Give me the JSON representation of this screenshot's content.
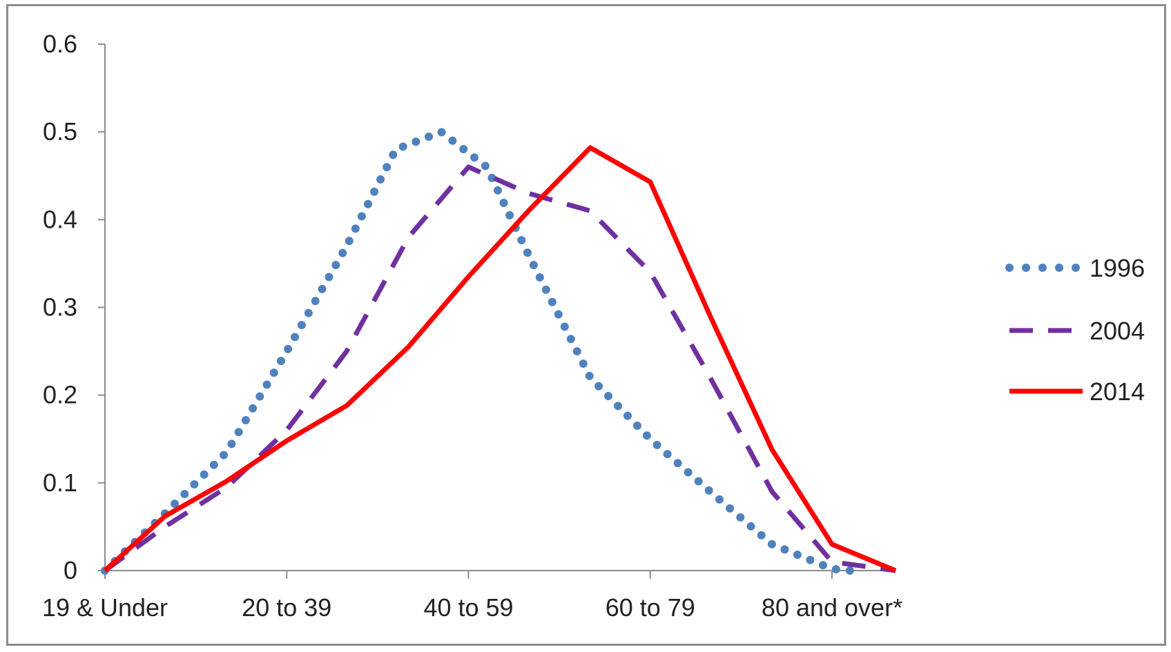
{
  "chart_data": {
    "type": "line",
    "categories": [
      "19 & Under",
      "20 to 39",
      "40 to 59",
      "60 to 79",
      "80 and over*"
    ],
    "x_positions": [
      0,
      1,
      2,
      3,
      4
    ],
    "ylim": [
      0,
      0.6
    ],
    "yticks": [
      "0",
      "0.1",
      "0.2",
      "0.3",
      "0.4",
      "0.5",
      "0.6"
    ],
    "ytick_values": [
      0,
      0.1,
      0.2,
      0.3,
      0.4,
      0.5,
      0.6
    ],
    "xlim": [
      0,
      4.35
    ],
    "legend_position": "right",
    "grid": false,
    "series": [
      {
        "name": "1996",
        "style": "dotted",
        "color": "#4f81bd",
        "points": [
          [
            0,
            0
          ],
          [
            0.33,
            0.065
          ],
          [
            0.67,
            0.135
          ],
          [
            1.0,
            0.25
          ],
          [
            1.33,
            0.37
          ],
          [
            1.6,
            0.48
          ],
          [
            1.85,
            0.5
          ],
          [
            2.1,
            0.46
          ],
          [
            2.33,
            0.36
          ],
          [
            2.67,
            0.22
          ],
          [
            3.0,
            0.15
          ],
          [
            3.33,
            0.09
          ],
          [
            3.67,
            0.03
          ],
          [
            4.0,
            0.002
          ],
          [
            4.1,
            0.0
          ]
        ]
      },
      {
        "name": "2004",
        "style": "dashed",
        "color": "#7030a0",
        "points": [
          [
            0,
            0
          ],
          [
            0.33,
            0.05
          ],
          [
            0.67,
            0.095
          ],
          [
            1.0,
            0.16
          ],
          [
            1.33,
            0.25
          ],
          [
            1.67,
            0.38
          ],
          [
            2.0,
            0.46
          ],
          [
            2.33,
            0.43
          ],
          [
            2.67,
            0.41
          ],
          [
            3.0,
            0.34
          ],
          [
            3.33,
            0.22
          ],
          [
            3.67,
            0.09
          ],
          [
            4.0,
            0.01
          ],
          [
            4.35,
            0.0
          ]
        ]
      },
      {
        "name": "2014",
        "style": "solid",
        "color": "#ff0000",
        "points": [
          [
            0,
            0
          ],
          [
            0.33,
            0.062
          ],
          [
            0.67,
            0.102
          ],
          [
            1.0,
            0.148
          ],
          [
            1.33,
            0.188
          ],
          [
            1.67,
            0.255
          ],
          [
            2.0,
            0.335
          ],
          [
            2.33,
            0.41
          ],
          [
            2.67,
            0.482
          ],
          [
            3.0,
            0.443
          ],
          [
            3.33,
            0.29
          ],
          [
            3.67,
            0.138
          ],
          [
            4.0,
            0.03
          ],
          [
            4.35,
            0.0
          ]
        ]
      }
    ]
  }
}
